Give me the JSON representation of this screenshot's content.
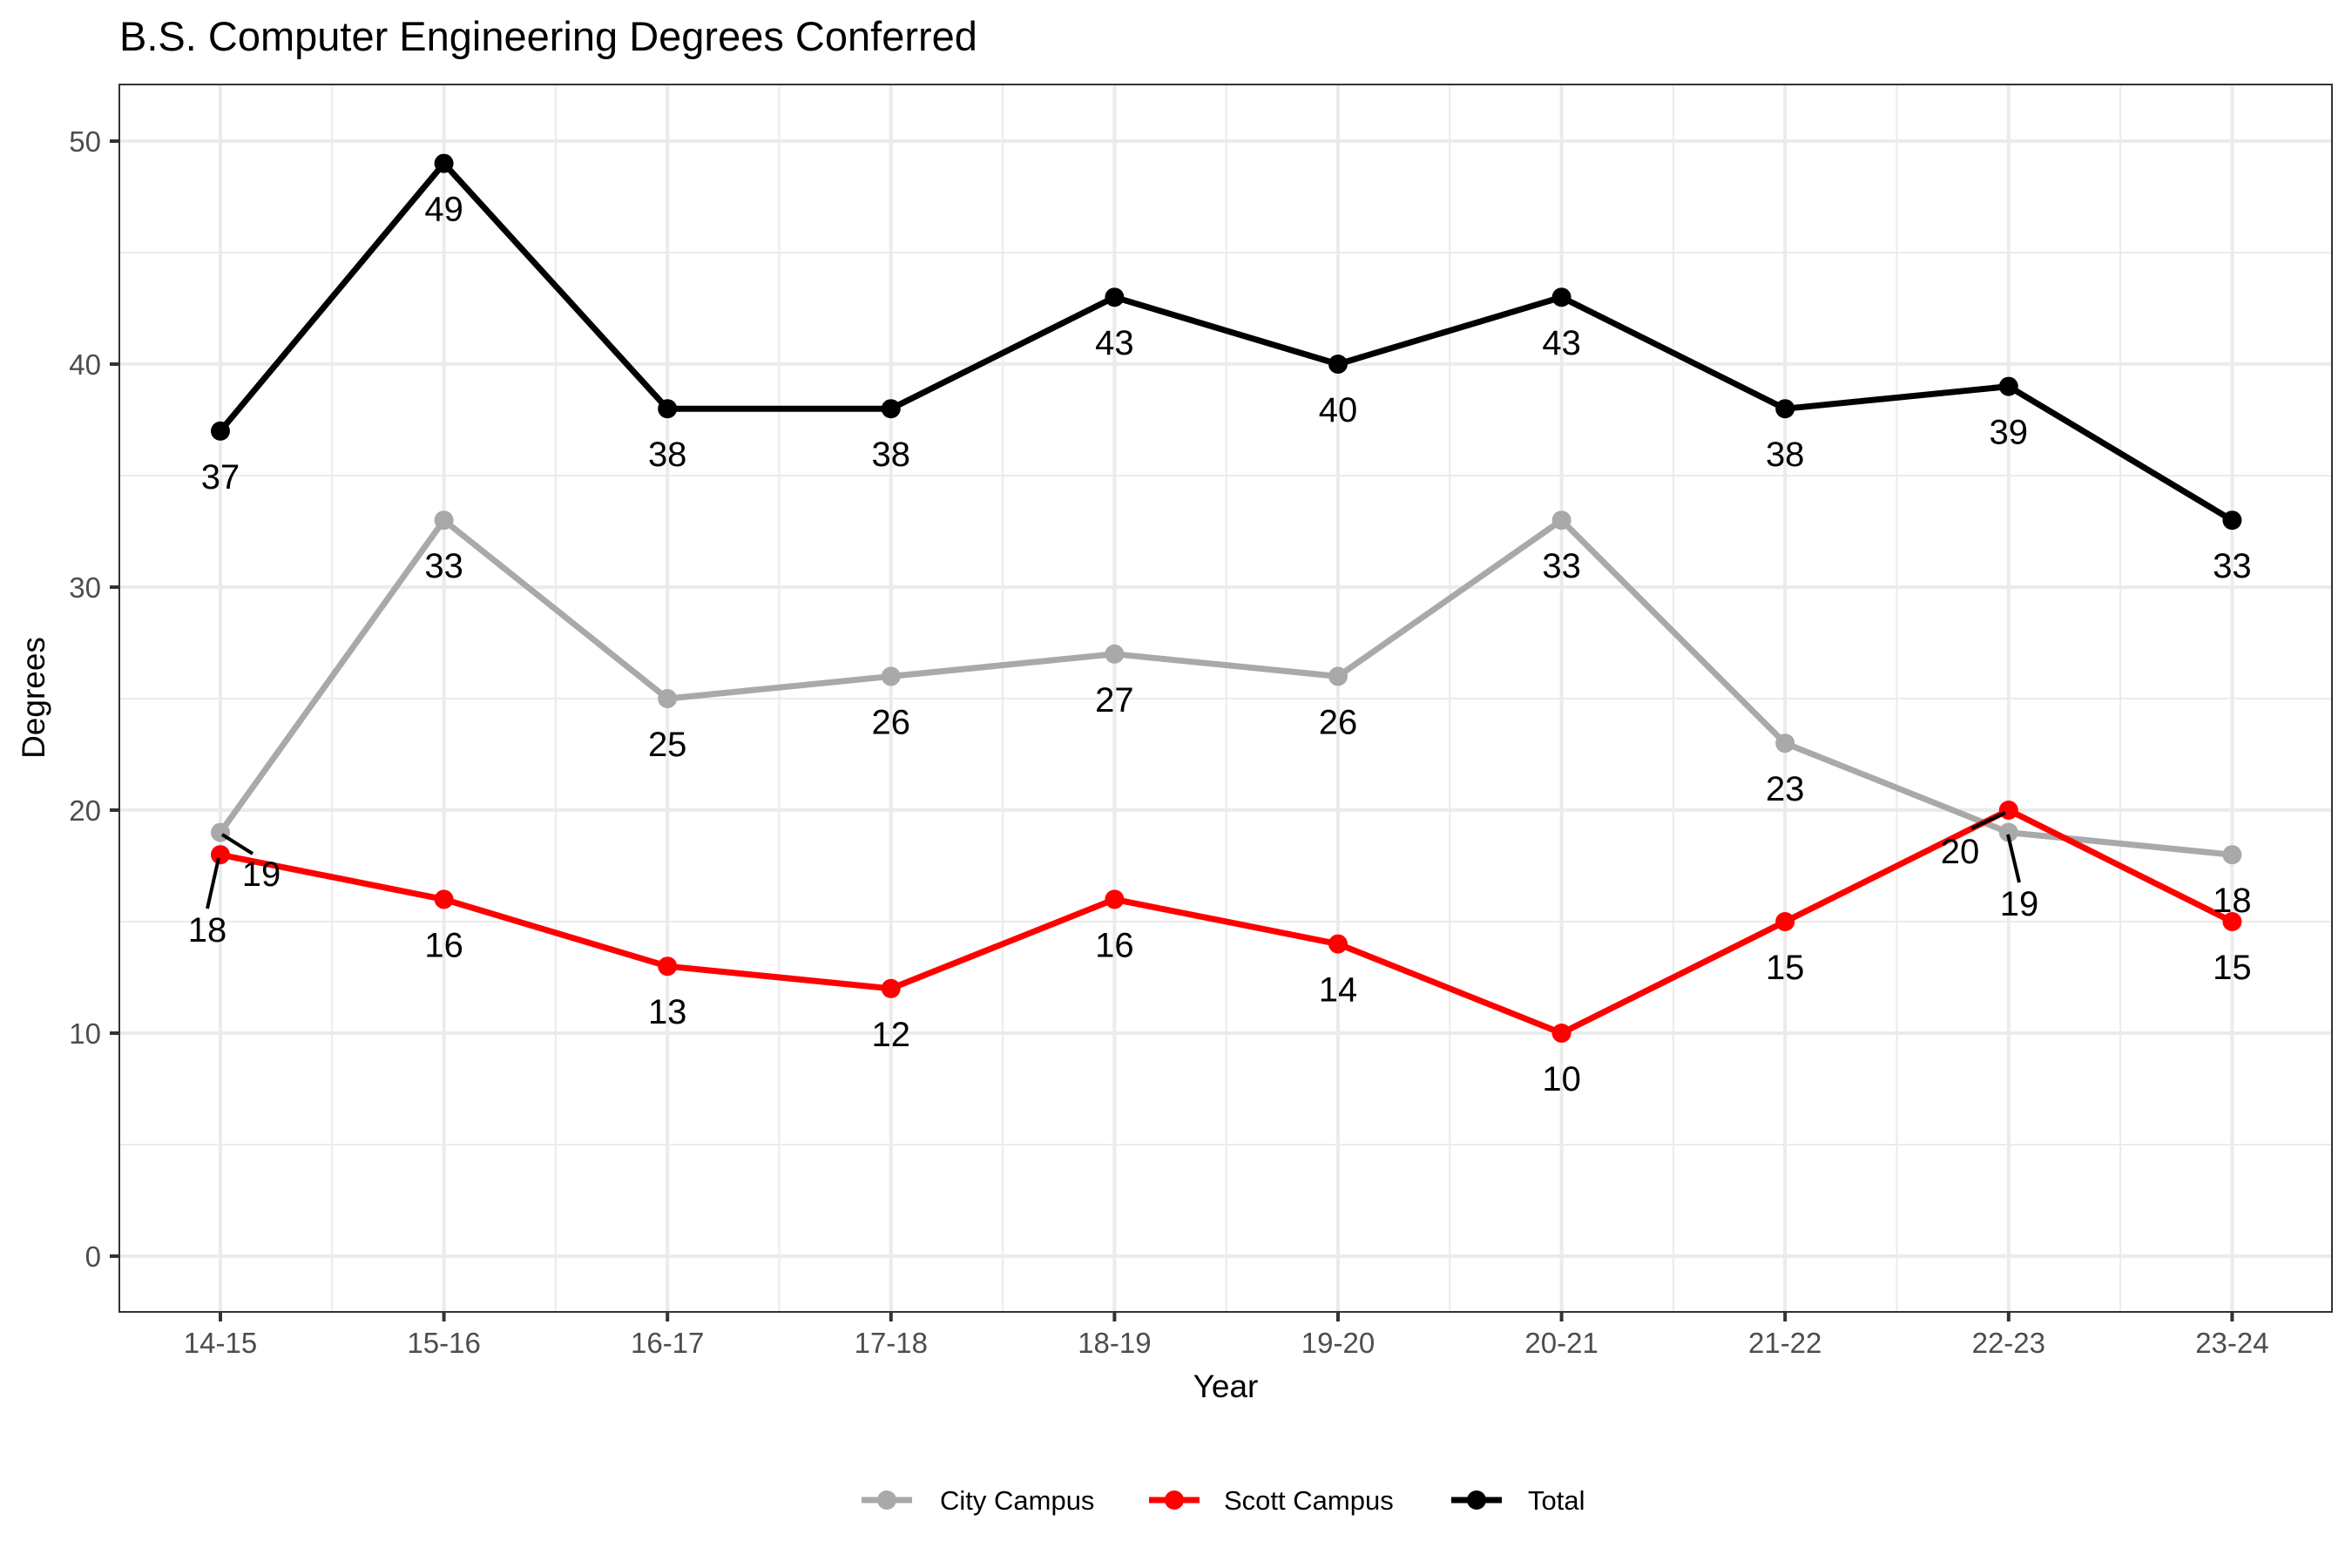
{
  "chart_data": {
    "type": "line",
    "title": "B.S. Computer Engineering Degrees Conferred",
    "xlabel": "Year",
    "ylabel": "Degrees",
    "categories": [
      "14-15",
      "15-16",
      "16-17",
      "17-18",
      "18-19",
      "19-20",
      "20-21",
      "21-22",
      "22-23",
      "23-24"
    ],
    "ylim": [
      -2.3,
      52.5
    ],
    "yticks": [
      0,
      10,
      20,
      30,
      40,
      50
    ],
    "ytick_labels": [
      "0",
      "10",
      "20",
      "30",
      "40",
      "50"
    ],
    "grid": true,
    "legend_position": "bottom",
    "series": [
      {
        "name": "City Campus",
        "color": "#a9a9a9",
        "values": [
          19,
          33,
          25,
          26,
          27,
          26,
          33,
          23,
          19,
          18
        ]
      },
      {
        "name": "Scott Campus",
        "color": "#ff0000",
        "values": [
          18,
          16,
          13,
          12,
          16,
          14,
          10,
          15,
          20,
          15
        ]
      },
      {
        "name": "Total",
        "color": "#000000",
        "values": [
          37,
          49,
          38,
          38,
          43,
          40,
          43,
          38,
          39,
          33
        ]
      }
    ]
  }
}
